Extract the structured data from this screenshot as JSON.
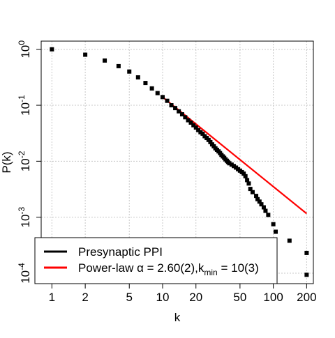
{
  "chart_data": {
    "type": "scatter",
    "xlabel": "k",
    "ylabel": "P(k)",
    "x_scale": "log",
    "y_scale": "log",
    "xlim": [
      0.8,
      230
    ],
    "ylim": [
      6.5e-05,
      1.4
    ],
    "grid": true,
    "legend_position": "bottom-left",
    "x_ticks": [
      1,
      2,
      5,
      10,
      20,
      50,
      100,
      200
    ],
    "x_tick_labels": [
      "1",
      "2",
      "5",
      "10",
      "20",
      "50",
      "100",
      "200"
    ],
    "y_ticks": [
      1,
      0.1,
      0.01,
      0.001,
      0.0001
    ],
    "y_tick_labels": [
      {
        "base": "10",
        "exp": "0"
      },
      {
        "base": "10",
        "exp": "-1"
      },
      {
        "base": "10",
        "exp": "-2"
      },
      {
        "base": "10",
        "exp": "-3"
      },
      {
        "base": "10",
        "exp": "-4"
      }
    ],
    "series": [
      {
        "name": "Presynaptic PPI",
        "color": "#000000",
        "marker": "square",
        "points": [
          [
            1,
            1.0
          ],
          [
            2,
            0.8
          ],
          [
            3,
            0.63
          ],
          [
            4,
            0.5
          ],
          [
            5,
            0.4
          ],
          [
            6,
            0.315
          ],
          [
            7,
            0.25
          ],
          [
            8,
            0.2
          ],
          [
            9,
            0.165
          ],
          [
            10,
            0.14
          ],
          [
            11,
            0.12
          ],
          [
            12,
            0.1
          ],
          [
            13,
            0.089
          ],
          [
            14,
            0.078
          ],
          [
            15,
            0.069
          ],
          [
            16,
            0.061
          ],
          [
            17,
            0.054
          ],
          [
            18,
            0.049
          ],
          [
            19,
            0.044
          ],
          [
            20,
            0.04
          ],
          [
            21,
            0.036
          ],
          [
            22,
            0.033
          ],
          [
            23,
            0.031
          ],
          [
            24,
            0.028
          ],
          [
            25,
            0.026
          ],
          [
            26,
            0.024
          ],
          [
            27,
            0.022
          ],
          [
            28,
            0.02
          ],
          [
            29,
            0.0185
          ],
          [
            30,
            0.017
          ],
          [
            31,
            0.016
          ],
          [
            32,
            0.015
          ],
          [
            33,
            0.014
          ],
          [
            34,
            0.013
          ],
          [
            35,
            0.0122
          ],
          [
            36,
            0.0115
          ],
          [
            37,
            0.0108
          ],
          [
            38,
            0.0102
          ],
          [
            39,
            0.0097
          ],
          [
            40,
            0.0092
          ],
          [
            42,
            0.0087
          ],
          [
            44,
            0.0082
          ],
          [
            46,
            0.0077
          ],
          [
            48,
            0.0072
          ],
          [
            50,
            0.0068
          ],
          [
            52,
            0.0064
          ],
          [
            54,
            0.006
          ],
          [
            56,
            0.0054
          ],
          [
            58,
            0.0046
          ],
          [
            60,
            0.004
          ],
          [
            62,
            0.0032
          ],
          [
            65,
            0.0028
          ],
          [
            70,
            0.0024
          ],
          [
            72,
            0.0021
          ],
          [
            75,
            0.0019
          ],
          [
            78,
            0.0017
          ],
          [
            82,
            0.0015
          ],
          [
            85,
            0.0013
          ],
          [
            90,
            0.0011
          ],
          [
            100,
            0.00075
          ],
          [
            105,
            0.00055
          ],
          [
            140,
            0.00038
          ],
          [
            200,
            0.00023
          ],
          [
            200,
            9.35e-05
          ]
        ]
      },
      {
        "name": "Power-law",
        "legend_math": {
          "alpha_symbol": "α",
          "alpha_text": " = 2.60(2),",
          "k_letter": "k",
          "k_sub": "min",
          "kmin_text": " = 10(3)"
        },
        "color": "#ff0000",
        "type": "line",
        "alpha": 2.6,
        "kmin": 10,
        "start": [
          10,
          0.14
        ],
        "end": [
          200
        ]
      }
    ]
  }
}
